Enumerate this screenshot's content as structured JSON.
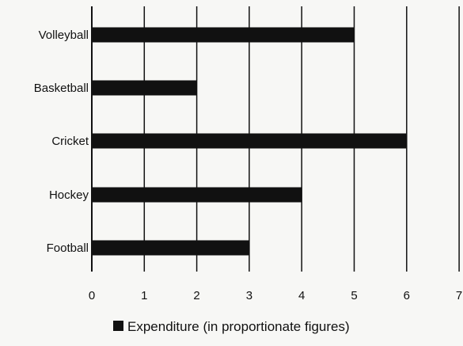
{
  "chart_data": {
    "type": "bar",
    "orientation": "horizontal",
    "categories": [
      "Volleyball",
      "Basketball",
      "Cricket",
      "Hockey",
      "Football"
    ],
    "series": [
      {
        "name": "Expenditure (in proportionate figures)",
        "values": [
          5,
          2,
          6,
          4,
          3
        ]
      }
    ],
    "xlim": [
      0,
      7
    ],
    "xticks": [
      "0",
      "1",
      "2",
      "3",
      "4",
      "5",
      "6",
      "7"
    ],
    "grid": "vertical",
    "legend_position": "bottom-center",
    "colors": {
      "bar": "#111111",
      "grid": "#111111",
      "background": "#f7f7f5"
    }
  }
}
